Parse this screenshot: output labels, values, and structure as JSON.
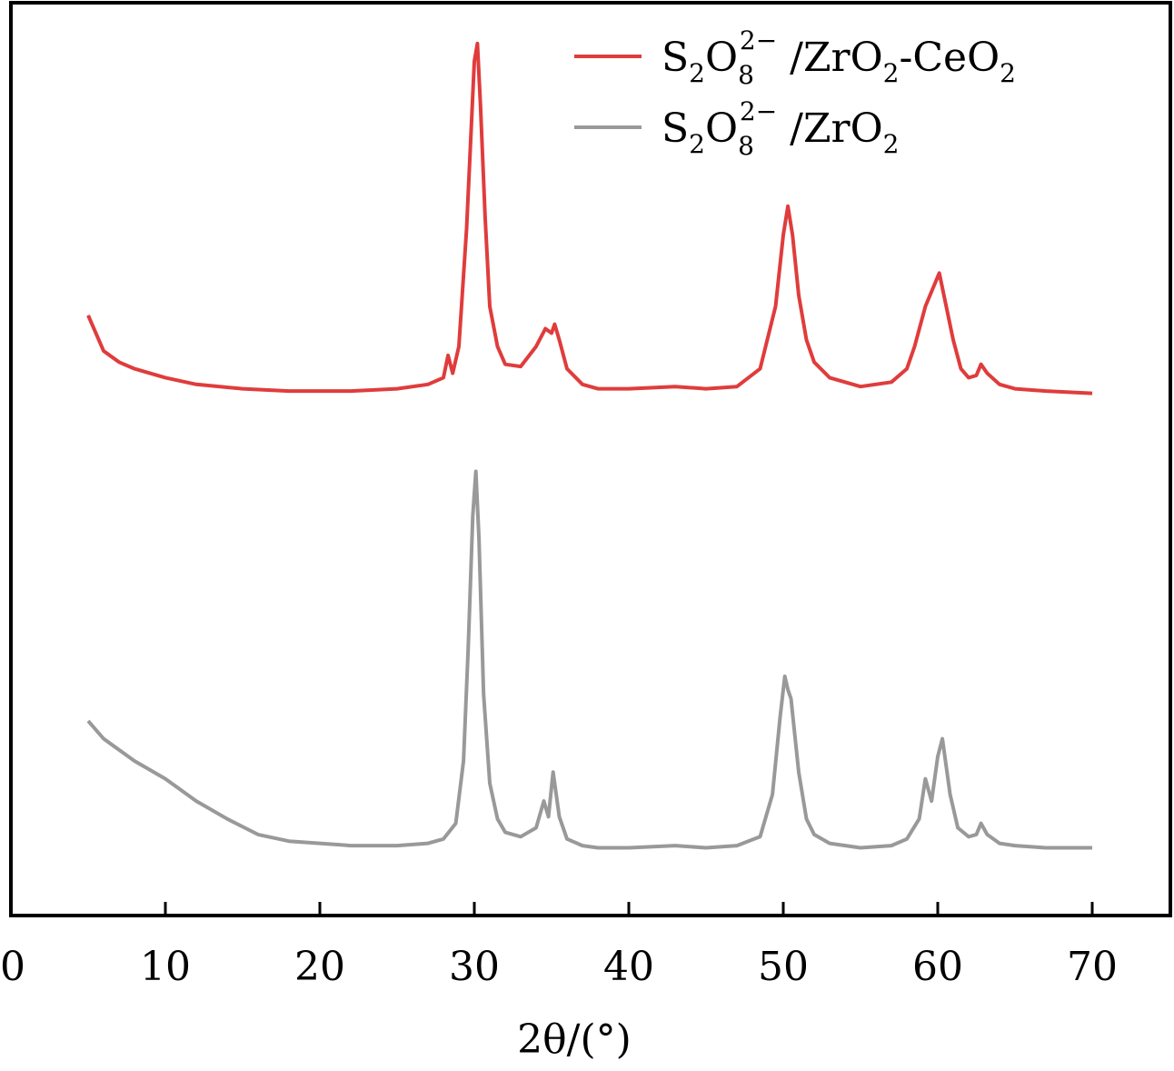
{
  "chart_data": {
    "type": "line",
    "xlabel": "2θ/(°)",
    "ylabel": "",
    "xlim": [
      0,
      75
    ],
    "x_ticks": [
      0,
      10,
      20,
      30,
      40,
      50,
      60,
      70
    ],
    "y_ticks_shown": false,
    "grid": false,
    "legend_position": "top-right",
    "series": [
      {
        "name": "S2O8 2− /ZrO2-CeO2",
        "color": "#e03c3c",
        "offset_level": "upper",
        "x": [
          5,
          6,
          7,
          8,
          10,
          12,
          15,
          18,
          20,
          22,
          25,
          27,
          28,
          28.3,
          28.6,
          29,
          29.5,
          29.8,
          30.0,
          30.2,
          30.4,
          30.7,
          31,
          31.5,
          32,
          33,
          34,
          34.6,
          35,
          35.2,
          35.5,
          36,
          37,
          38,
          40,
          43,
          45,
          47,
          48.5,
          49.5,
          50,
          50.3,
          50.6,
          51,
          51.5,
          52,
          53,
          55,
          57,
          58,
          58.5,
          59.2,
          59.8,
          60.1,
          60.4,
          61,
          61.5,
          62,
          62.5,
          62.8,
          63.2,
          64,
          65,
          67,
          70
        ],
        "values": [
          0.36,
          0.2,
          0.15,
          0.12,
          0.08,
          0.05,
          0.03,
          0.02,
          0.02,
          0.02,
          0.03,
          0.05,
          0.08,
          0.18,
          0.1,
          0.22,
          0.75,
          1.2,
          1.5,
          1.58,
          1.3,
          0.8,
          0.4,
          0.22,
          0.14,
          0.13,
          0.22,
          0.3,
          0.28,
          0.32,
          0.25,
          0.12,
          0.05,
          0.03,
          0.03,
          0.04,
          0.03,
          0.04,
          0.12,
          0.4,
          0.72,
          0.85,
          0.72,
          0.45,
          0.25,
          0.15,
          0.08,
          0.04,
          0.06,
          0.12,
          0.22,
          0.4,
          0.5,
          0.55,
          0.45,
          0.25,
          0.12,
          0.08,
          0.09,
          0.14,
          0.1,
          0.05,
          0.03,
          0.02,
          0.01
        ]
      },
      {
        "name": "S2O8 2− /ZrO2",
        "color": "#999999",
        "offset_level": "lower",
        "x": [
          5,
          6,
          7,
          8,
          10,
          12,
          14,
          16,
          18,
          20,
          22,
          25,
          27,
          28,
          28.8,
          29.3,
          29.6,
          29.9,
          30.1,
          30.3,
          30.6,
          31,
          31.5,
          32,
          33,
          34,
          34.5,
          34.8,
          35.1,
          35.5,
          36,
          37,
          38,
          40,
          43,
          45,
          47,
          48.5,
          49.3,
          49.8,
          50.1,
          50.3,
          50.5,
          51,
          51.5,
          52,
          53,
          55,
          57,
          58,
          58.8,
          59.2,
          59.6,
          60.0,
          60.3,
          60.8,
          61.3,
          62,
          62.5,
          62.8,
          63.2,
          64,
          65,
          67,
          70
        ],
        "values": [
          0.58,
          0.5,
          0.45,
          0.4,
          0.32,
          0.22,
          0.14,
          0.07,
          0.04,
          0.03,
          0.02,
          0.02,
          0.03,
          0.05,
          0.12,
          0.4,
          0.9,
          1.5,
          1.7,
          1.4,
          0.7,
          0.3,
          0.14,
          0.08,
          0.06,
          0.1,
          0.22,
          0.15,
          0.35,
          0.15,
          0.05,
          0.02,
          0.01,
          0.01,
          0.02,
          0.01,
          0.02,
          0.06,
          0.25,
          0.6,
          0.78,
          0.72,
          0.68,
          0.35,
          0.14,
          0.07,
          0.03,
          0.01,
          0.02,
          0.05,
          0.14,
          0.32,
          0.22,
          0.42,
          0.5,
          0.25,
          0.1,
          0.06,
          0.07,
          0.12,
          0.07,
          0.03,
          0.02,
          0.01,
          0.01
        ]
      }
    ],
    "legend": [
      {
        "label_parts": [
          "S",
          "2",
          "O",
          "8",
          "2−",
          " /ZrO",
          "2",
          "-CeO",
          "2"
        ],
        "color": "#e03c3c"
      },
      {
        "label_parts": [
          "S",
          "2",
          "O",
          "8",
          "2−",
          " /ZrO",
          "2"
        ],
        "color": "#999999"
      }
    ]
  }
}
